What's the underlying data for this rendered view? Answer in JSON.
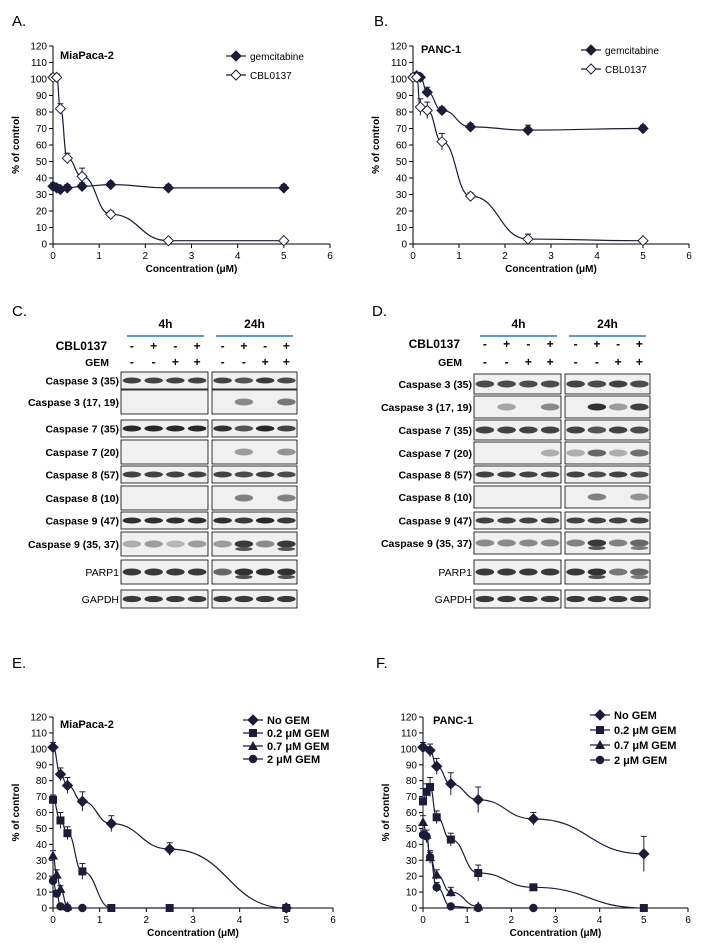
{
  "panels": {
    "A": {
      "label": "A.",
      "title": "MiaPaca-2",
      "ylabel": "% of control",
      "xlabel": "Concentration (μM)"
    },
    "B": {
      "label": "B.",
      "title": "PANC-1",
      "ylabel": "% of control",
      "xlabel": "Concentration (μM)"
    },
    "C": {
      "label": "C."
    },
    "D": {
      "label": "D."
    },
    "E": {
      "label": "E.",
      "title": "MiaPaca-2",
      "ylabel": "% of control",
      "xlabel": "Concentration (μM)"
    },
    "F": {
      "label": "F.",
      "title": "PANC-1",
      "ylabel": "% of control",
      "xlabel": "Concentration (μM)"
    }
  },
  "chart_data": [
    {
      "id": "A",
      "type": "line",
      "title": "MiaPaca-2",
      "xlabel": "Concentration (μM)",
      "ylabel": "% of control",
      "xlim": [
        0,
        6
      ],
      "ylim": [
        0,
        120
      ],
      "xticks": [
        "0",
        "1",
        "2",
        "3",
        "4",
        "5",
        "6"
      ],
      "yticks": [
        "0",
        "10",
        "20",
        "30",
        "40",
        "50",
        "60",
        "70",
        "80",
        "90",
        "100",
        "110",
        "120"
      ],
      "legend": "top-right",
      "series": [
        {
          "name": "gemcitabine",
          "marker": "diamond-filled",
          "x": [
            0,
            0.08,
            0.16,
            0.31,
            0.63,
            1.25,
            2.5,
            5
          ],
          "y": [
            35,
            34,
            33,
            34,
            35,
            36,
            34,
            34
          ],
          "err": [
            2,
            2,
            2,
            2,
            2,
            2,
            2,
            2
          ]
        },
        {
          "name": "CBL0137",
          "marker": "diamond-open",
          "x": [
            0,
            0.08,
            0.16,
            0.31,
            0.63,
            1.25,
            2.5,
            5
          ],
          "y": [
            101,
            101,
            82,
            52,
            41,
            18,
            2,
            2
          ],
          "err": [
            2,
            2,
            3,
            3,
            5,
            2,
            1,
            1
          ]
        }
      ]
    },
    {
      "id": "B",
      "type": "line",
      "title": "PANC-1",
      "xlabel": "Concentration (μM)",
      "ylabel": "% of control",
      "xlim": [
        0,
        6
      ],
      "ylim": [
        0,
        120
      ],
      "xticks": [
        "0",
        "1",
        "2",
        "3",
        "4",
        "5",
        "6"
      ],
      "yticks": [
        "0",
        "10",
        "20",
        "30",
        "40",
        "50",
        "60",
        "70",
        "80",
        "90",
        "100",
        "110",
        "120"
      ],
      "legend": "top-right",
      "series": [
        {
          "name": "gemcitabine",
          "marker": "diamond-filled",
          "x": [
            0,
            0.08,
            0.16,
            0.31,
            0.63,
            1.25,
            2.5,
            5
          ],
          "y": [
            101,
            102,
            101,
            92,
            81,
            71,
            69,
            70
          ],
          "err": [
            2,
            2,
            2,
            3,
            2,
            2,
            3,
            2
          ]
        },
        {
          "name": "CBL0137",
          "marker": "diamond-open",
          "x": [
            0,
            0.08,
            0.16,
            0.31,
            0.63,
            1.25,
            2.5,
            5
          ],
          "y": [
            101,
            101,
            83,
            81,
            62,
            29,
            3,
            2
          ],
          "err": [
            2,
            2,
            5,
            5,
            5,
            2,
            3,
            1
          ]
        }
      ]
    },
    {
      "id": "E",
      "type": "line",
      "title": "MiaPaca-2",
      "xlabel": "Concentration (μM)",
      "ylabel": "% of control",
      "xlim": [
        0,
        6
      ],
      "ylim": [
        0,
        120
      ],
      "xticks": [
        "0",
        "1",
        "2",
        "3",
        "4",
        "5",
        "6"
      ],
      "yticks": [
        "0",
        "10",
        "20",
        "30",
        "40",
        "50",
        "60",
        "70",
        "80",
        "90",
        "100",
        "110",
        "120"
      ],
      "legend": "top-right",
      "series": [
        {
          "name": "No GEM",
          "marker": "diamond-filled",
          "x": [
            0,
            0.16,
            0.31,
            0.63,
            1.25,
            2.5,
            5
          ],
          "y": [
            101,
            84,
            77,
            67,
            53,
            37,
            0
          ],
          "err": [
            3,
            4,
            5,
            6,
            5,
            4,
            1
          ]
        },
        {
          "name": "0.2 μM GEM",
          "marker": "square",
          "x": [
            0,
            0.16,
            0.31,
            0.63,
            1.25,
            2.5,
            5
          ],
          "y": [
            68,
            55,
            47,
            23,
            0,
            0,
            0
          ],
          "err": [
            3,
            5,
            4,
            5,
            1,
            1,
            1
          ]
        },
        {
          "name": "0.7 μM GEM",
          "marker": "triangle",
          "x": [
            0,
            0.08,
            0.16,
            0.31
          ],
          "y": [
            33,
            21,
            12,
            1
          ],
          "err": [
            3,
            3,
            2,
            1
          ]
        },
        {
          "name": "2 μM GEM",
          "marker": "circle",
          "x": [
            0,
            0.08,
            0.16,
            0.31,
            0.63
          ],
          "y": [
            17,
            9,
            1,
            0,
            0
          ],
          "err": [
            2,
            2,
            1,
            1,
            1
          ]
        }
      ]
    },
    {
      "id": "F",
      "type": "line",
      "title": "PANC-1",
      "xlabel": "Concentration (μM)",
      "ylabel": "% of control",
      "xlim": [
        0,
        6
      ],
      "ylim": [
        0,
        120
      ],
      "xticks": [
        "0",
        "1",
        "2",
        "3",
        "4",
        "5",
        "6"
      ],
      "yticks": [
        "0",
        "10",
        "20",
        "30",
        "40",
        "50",
        "60",
        "70",
        "80",
        "90",
        "100",
        "110",
        "120"
      ],
      "legend": "top-right",
      "series": [
        {
          "name": "No GEM",
          "marker": "diamond-filled",
          "x": [
            0,
            0.16,
            0.31,
            0.63,
            1.25,
            2.5,
            5
          ],
          "y": [
            101,
            99,
            89,
            78,
            68,
            56,
            34
          ],
          "err": [
            3,
            4,
            5,
            7,
            8,
            4,
            11
          ]
        },
        {
          "name": "0.2 μM GEM",
          "marker": "square",
          "x": [
            0,
            0.08,
            0.16,
            0.31,
            0.63,
            1.25,
            2.5,
            5
          ],
          "y": [
            67,
            73,
            76,
            57,
            43,
            22,
            13,
            0
          ],
          "err": [
            8,
            5,
            6,
            4,
            4,
            5,
            2,
            1
          ]
        },
        {
          "name": "0.7 μM GEM",
          "marker": "triangle",
          "x": [
            0,
            0.08,
            0.16,
            0.31,
            0.63,
            1.25
          ],
          "y": [
            54,
            46,
            32,
            21,
            10,
            1
          ],
          "err": [
            4,
            3,
            4,
            3,
            3,
            1
          ]
        },
        {
          "name": "2 μM GEM",
          "marker": "circle",
          "x": [
            0,
            0.08,
            0.16,
            0.31,
            0.63,
            1.25,
            2.5
          ],
          "y": [
            46,
            45,
            32,
            13,
            1,
            0,
            0
          ],
          "err": [
            3,
            4,
            3,
            3,
            1,
            1,
            1
          ]
        }
      ]
    }
  ],
  "western_blots": [
    {
      "id": "C",
      "timepoints": [
        "4h",
        "24h"
      ],
      "treatments": [
        {
          "name": "CBL0137",
          "signs": [
            "-",
            "+",
            "-",
            "+",
            "-",
            "+",
            "-",
            "+"
          ]
        },
        {
          "name": "GEM",
          "signs": [
            "-",
            "-",
            "+",
            "+",
            "-",
            "-",
            "+",
            "+"
          ]
        }
      ],
      "rows": [
        {
          "label": "Caspase 3 (35)",
          "bold": true
        },
        {
          "label": "Caspase 3 (17, 19)",
          "bold": true
        },
        {
          "label": "Caspase 7 (35)",
          "bold": true
        },
        {
          "label": "Caspase 7 (20)",
          "bold": true
        },
        {
          "label": "Caspase 8 (57)",
          "bold": true
        },
        {
          "label": "Caspase 8 (10)",
          "bold": true
        },
        {
          "label": "Caspase 9 (47)",
          "bold": true
        },
        {
          "label": "Caspase 9 (35, 37)",
          "bold": true
        },
        {
          "label": "PARP1",
          "bold": false
        },
        {
          "label": "GAPDH",
          "bold": false
        }
      ]
    },
    {
      "id": "D",
      "timepoints": [
        "4h",
        "24h"
      ],
      "treatments": [
        {
          "name": "CBL0137",
          "signs": [
            "-",
            "+",
            "-",
            "+",
            "-",
            "+",
            "-",
            "+"
          ]
        },
        {
          "name": "GEM",
          "signs": [
            "-",
            "-",
            "+",
            "+",
            "-",
            "-",
            "+",
            "+"
          ]
        }
      ],
      "rows": [
        {
          "label": "Caspase 3 (35)",
          "bold": true
        },
        {
          "label": "Caspase 3 (17, 19)",
          "bold": true
        },
        {
          "label": "Caspase 7 (35)",
          "bold": true
        },
        {
          "label": "Caspase 7 (20)",
          "bold": true
        },
        {
          "label": "Caspase 8 (57)",
          "bold": true
        },
        {
          "label": "Caspase 8 (10)",
          "bold": true
        },
        {
          "label": "Caspase 9 (47)",
          "bold": true
        },
        {
          "label": "Caspase 9 (35, 37)",
          "bold": true
        },
        {
          "label": "PARP1",
          "bold": false
        },
        {
          "label": "GAPDH",
          "bold": false
        }
      ]
    }
  ]
}
